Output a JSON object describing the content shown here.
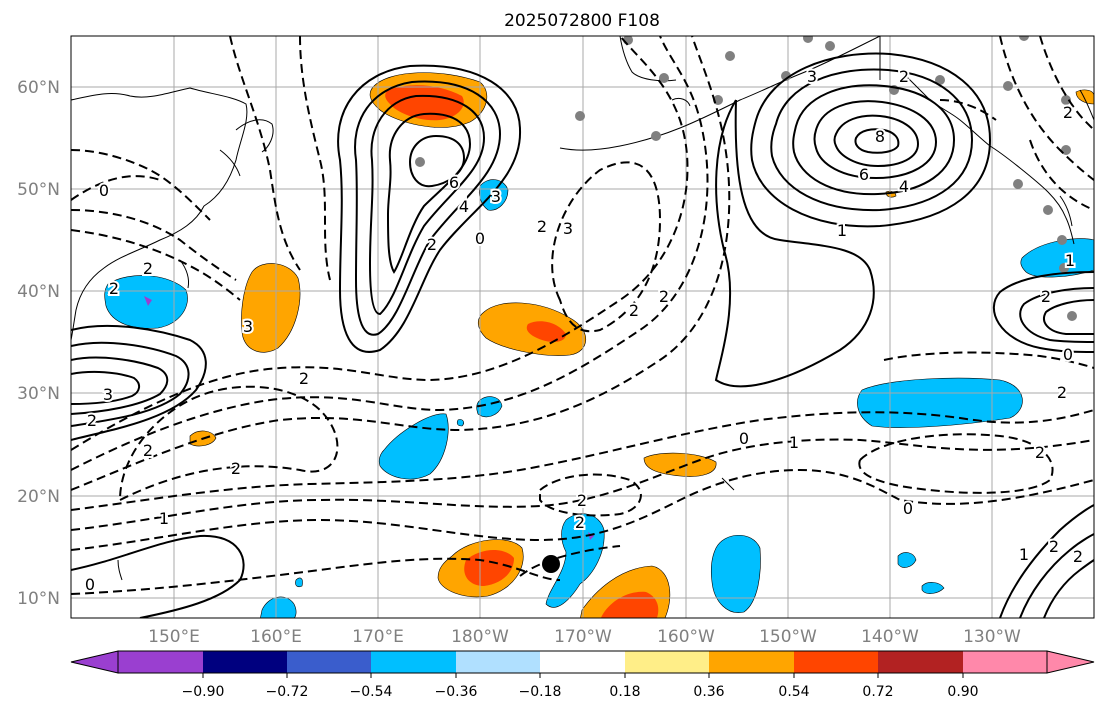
{
  "title": "2025072800 F108",
  "map": {
    "lat_labels": [
      "60°N",
      "50°N",
      "40°N",
      "30°N",
      "20°N",
      "10°N"
    ],
    "lon_labels": [
      "150°E",
      "160°E",
      "170°E",
      "180°W",
      "170°W",
      "160°W",
      "150°W",
      "140°W",
      "130°W"
    ],
    "contour_labels": [
      "0",
      "1",
      "2",
      "2",
      "3",
      "2",
      "2",
      "2",
      "3",
      "2",
      "4",
      "6",
      "3",
      "2",
      "0",
      "3",
      "2",
      "2",
      "2",
      "3",
      "2",
      "8",
      "6",
      "4",
      "1",
      "1",
      "2",
      "0",
      "2",
      "2",
      "0",
      "1",
      "0",
      "2",
      "2",
      "1",
      "2",
      "2",
      "2",
      "0"
    ]
  },
  "colorbar": {
    "tick_labels": [
      "−0.90",
      "−0.72",
      "−0.54",
      "−0.36",
      "−0.18",
      "0.18",
      "0.36",
      "0.54",
      "0.72",
      "0.90"
    ],
    "colors": [
      "#9a3fd0",
      "#00007f",
      "#3a5dcc",
      "#00bfff",
      "#b0e0ff",
      "#ffffff",
      "#ffee88",
      "#ffa500",
      "#ff4500",
      "#b22222",
      "#ff88aa"
    ]
  },
  "colors": {
    "positive_fill_light": "#ffa500",
    "positive_fill_strong": "#ff4500",
    "negative_fill": "#00bfff",
    "station_dot": "#808080"
  }
}
